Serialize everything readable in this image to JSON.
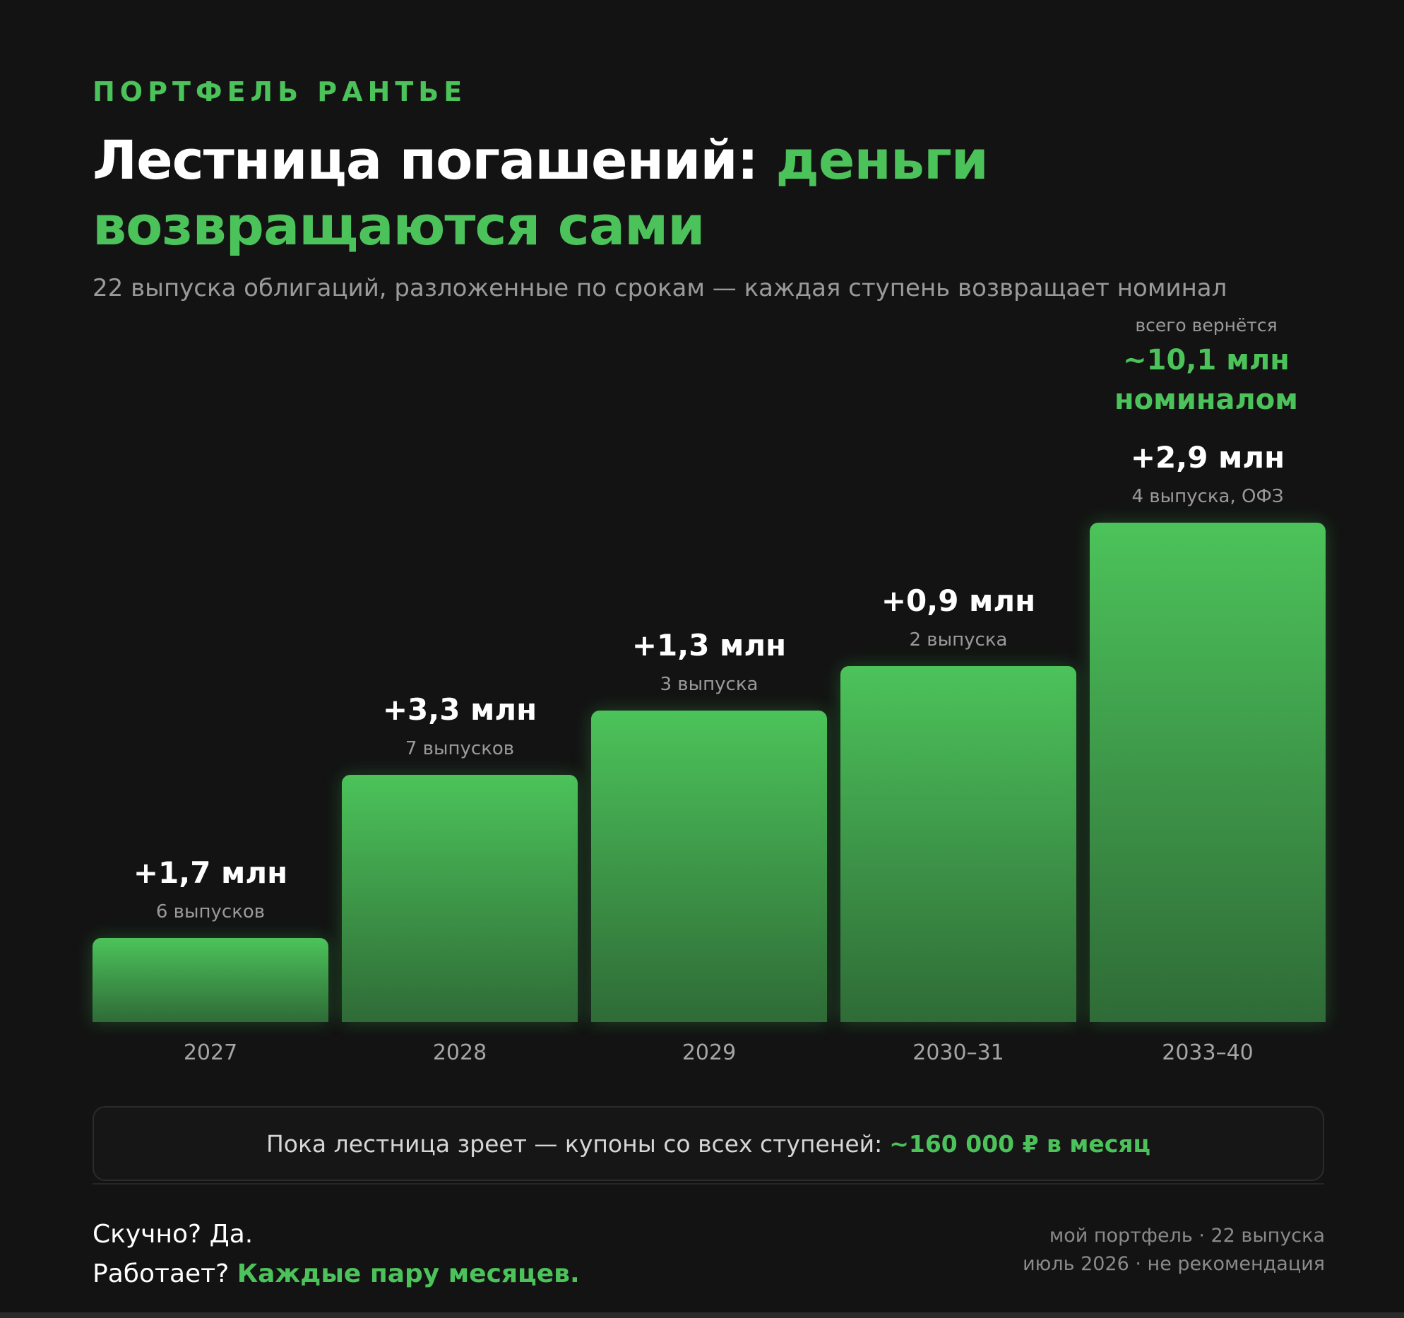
{
  "eyebrow": "ПОРТФЕЛЬ РАНТЬЕ",
  "title": {
    "part1": "Лестница погашений: ",
    "accent": "деньги возвращаются сами"
  },
  "subtitle": "22 выпуска облигаций, разложенные по срокам — каждая ступень возвращает номинал",
  "total": {
    "caption": "всего вернётся",
    "line1": "~10,1 млн",
    "line2": "номиналом"
  },
  "chart_data": {
    "type": "bar",
    "categories": [
      "2027",
      "2028",
      "2029",
      "2030–31",
      "2033–40"
    ],
    "values": [
      1.7,
      3.3,
      1.3,
      0.9,
      2.9
    ],
    "value_labels": [
      "+1,7 млн",
      "+3,3 млн",
      "+1,3 млн",
      "+0,9 млн",
      "+2,9 млн"
    ],
    "issue_labels": [
      "6 выпусков",
      "7 выпусков",
      "3 выпуска",
      "2 выпуска",
      "4 выпуска, ОФЗ"
    ],
    "cumulative": [
      1.7,
      5.0,
      6.3,
      7.2,
      10.1
    ],
    "ylim": [
      0,
      10.1
    ],
    "title": "",
    "xlabel": "",
    "ylabel": "",
    "grid": false,
    "bar_color": "#4cc35a",
    "bar_color_dark": "#2f6b37"
  },
  "coupon": {
    "text": "Пока лестница зреет — купоны со всех ступеней:",
    "accent": "~160 000 ₽ в месяц"
  },
  "footer": {
    "line1": "Скучно? Да.",
    "line2_prefix": "Работает? ",
    "line2_accent": "Каждые пару месяцев.",
    "meta1": "мой портфель · 22 выпуска",
    "meta2": "июль 2026 · не рекомендация"
  },
  "colors": {
    "accent": "#4cc35a",
    "background": "#131313",
    "muted": "#9a9a9a"
  }
}
